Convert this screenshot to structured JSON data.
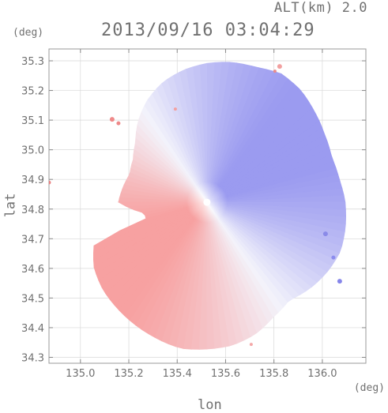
{
  "header": {
    "altitude": "ALT(km) 2.0",
    "timestamp": "2013/09/16 03:04:29",
    "y_unit": "(deg)",
    "x_unit": "(deg)"
  },
  "chart_data": {
    "type": "heatmap",
    "title": "2013/09/16 03:04:29",
    "subtitle": "ALT(km) 2.0",
    "xlabel": "lon",
    "ylabel": "lat",
    "x_unit": "(deg)",
    "y_unit": "(deg)",
    "xlim": [
      134.87,
      136.18
    ],
    "ylim": [
      34.28,
      35.34
    ],
    "x_ticks": [
      135.0,
      135.2,
      135.4,
      135.6,
      135.8,
      136.0
    ],
    "x_tick_labels": [
      "135.0",
      "135.2",
      "135.4",
      "135.6",
      "135.8",
      "136.0"
    ],
    "y_ticks": [
      34.3,
      34.4,
      34.5,
      34.6,
      34.7,
      34.8,
      34.9,
      35.0,
      35.1,
      35.2,
      35.3
    ],
    "y_tick_labels": [
      "34.3",
      "34.4",
      "34.5",
      "34.6",
      "34.7",
      "34.8",
      "34.9",
      "35.0",
      "35.1",
      "35.2",
      "35.3"
    ],
    "grid": true,
    "radar_center": [
      135.523,
      34.823
    ],
    "colormap": {
      "positive": "#f7a1a1",
      "negative": "#9b9bf0",
      "zero": "#f3f3fb"
    }
  }
}
